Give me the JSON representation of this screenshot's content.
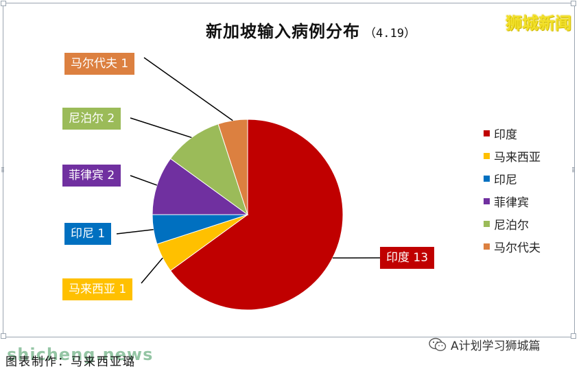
{
  "title": "新加坡输入病例分布",
  "date": "（4.19）",
  "watermark_top": "狮城新闻",
  "watermark_bottom": "shicheng.news",
  "credit": "图表制作：马来西亚璐",
  "wechat_label": "A计划学习狮城篇",
  "colors": {
    "印度": "#c00000",
    "马来西亚": "#ffc000",
    "印尼": "#0070c0",
    "菲律宾": "#7030a0",
    "尼泊尔": "#9bbb59",
    "马尔代夫": "#dc8040"
  },
  "chart_data": {
    "type": "pie",
    "title": "新加坡输入病例分布",
    "subtitle": "（4.19）",
    "categories": [
      "印度",
      "马来西亚",
      "印尼",
      "菲律宾",
      "尼泊尔",
      "马尔代夫"
    ],
    "values": [
      13,
      1,
      1,
      2,
      2,
      1
    ],
    "data_labels": [
      "印度 13",
      "马来西亚 1",
      "印尼 1",
      "菲律宾 2",
      "尼泊尔 2",
      "马尔代夫 1"
    ],
    "legend": [
      "印度",
      "马来西亚",
      "印尼",
      "菲律宾",
      "尼泊尔",
      "马尔代夫"
    ],
    "legend_position": "right"
  }
}
